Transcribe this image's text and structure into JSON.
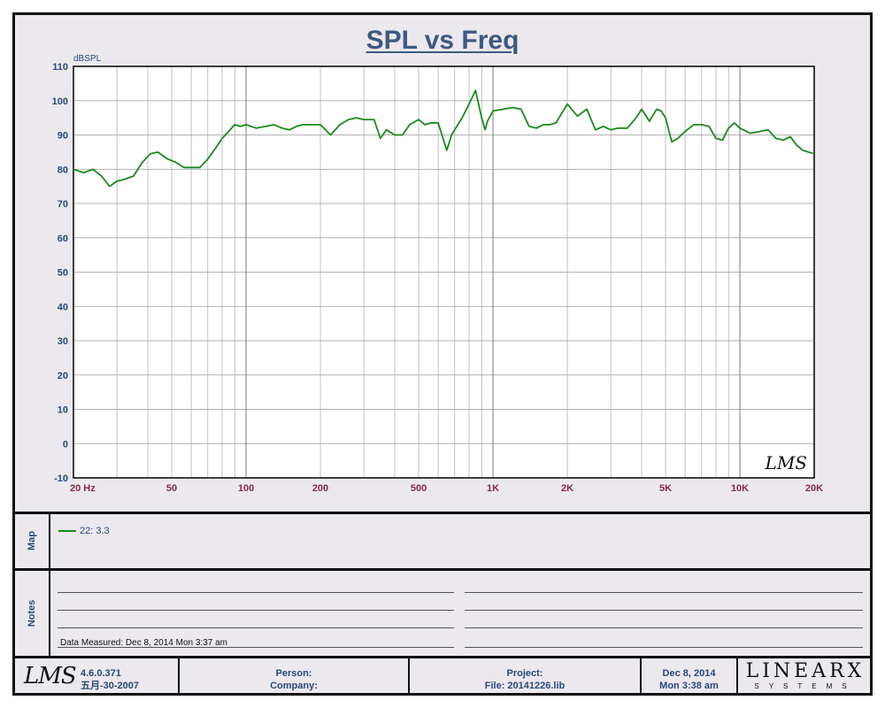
{
  "title": "SPL vs Freq",
  "chart_data": {
    "type": "line",
    "title": "SPL vs Freq",
    "ylabel": "dBSPL",
    "xlabel": "",
    "xscale": "log",
    "xlim": [
      20,
      20000
    ],
    "ylim": [
      -10,
      110
    ],
    "grid": true,
    "x_ticks": [
      {
        "value": 20,
        "label": "20  Hz"
      },
      {
        "value": 50,
        "label": "50"
      },
      {
        "value": 100,
        "label": "100"
      },
      {
        "value": 200,
        "label": "200"
      },
      {
        "value": 500,
        "label": "500"
      },
      {
        "value": 1000,
        "label": "1K"
      },
      {
        "value": 2000,
        "label": "2K"
      },
      {
        "value": 5000,
        "label": "5K"
      },
      {
        "value": 10000,
        "label": "10K"
      },
      {
        "value": 20000,
        "label": "20K"
      }
    ],
    "y_ticks": [
      110,
      100,
      90,
      80,
      70,
      60,
      50,
      40,
      30,
      20,
      10,
      0,
      -10
    ],
    "watermark": "LMS",
    "series": [
      {
        "name": "22: 3.3",
        "color": "#1a8a1a",
        "x": [
          20,
          22,
          24,
          26,
          28,
          30,
          32,
          35,
          38,
          41,
          44,
          48,
          52,
          56,
          60,
          65,
          70,
          75,
          80,
          85,
          90,
          95,
          100,
          110,
          120,
          130,
          140,
          150,
          160,
          170,
          180,
          190,
          200,
          220,
          240,
          260,
          280,
          300,
          330,
          350,
          370,
          400,
          430,
          460,
          500,
          530,
          560,
          600,
          650,
          680,
          700,
          750,
          800,
          850,
          900,
          930,
          950,
          1000,
          1100,
          1200,
          1300,
          1400,
          1500,
          1600,
          1700,
          1800,
          2000,
          2200,
          2400,
          2600,
          2800,
          3000,
          3200,
          3500,
          3800,
          4000,
          4300,
          4600,
          4800,
          5000,
          5300,
          5600,
          6000,
          6500,
          7000,
          7500,
          8000,
          8500,
          9000,
          9500,
          10000,
          11000,
          12000,
          13000,
          14000,
          15000,
          16000,
          17000,
          18000,
          19000,
          20000
        ],
        "y": [
          80,
          79,
          80,
          78,
          75,
          76.5,
          77,
          78,
          82,
          84.5,
          85,
          83,
          82,
          80.5,
          80.5,
          80.5,
          83,
          86,
          89,
          91,
          93,
          92.5,
          93,
          92,
          92.5,
          93,
          92,
          91.5,
          92.5,
          93,
          93,
          93,
          93,
          90,
          93,
          94.5,
          95,
          94.5,
          94.5,
          89,
          91.5,
          90,
          90,
          93,
          94.5,
          93,
          93.5,
          93.5,
          85.5,
          90,
          91.5,
          95,
          99,
          103,
          95,
          91.5,
          94,
          97,
          97.5,
          98,
          97.5,
          92.5,
          92,
          93,
          93,
          93.5,
          99,
          95.5,
          97.5,
          91.5,
          92.5,
          91.5,
          92,
          92,
          95,
          97.5,
          94,
          97.5,
          97,
          95,
          88,
          89,
          91,
          93,
          93,
          92.5,
          89,
          88.5,
          92,
          93.5,
          92,
          90.5,
          91,
          91.5,
          89,
          88.5,
          89.5,
          87,
          85.5,
          85,
          84.5
        ]
      }
    ]
  },
  "map": {
    "label": "Map",
    "legend_label": "22: 3.3"
  },
  "notes": {
    "label": "Notes",
    "data_measured": "Data Measured: Dec  8, 2014  Mon  3:37 am"
  },
  "footer": {
    "logo": "LMS",
    "version": "4.6.0.371",
    "version_date": "五月-30-2007",
    "person_label": "Person:",
    "company_label": "Company:",
    "project_label": "Project:",
    "file_label": "File: 20141226.lib",
    "date": "Dec  8, 2014",
    "time": "Mon  3:38 am",
    "brand_main": "LINEARX",
    "brand_sub": "SYSTEMS"
  }
}
